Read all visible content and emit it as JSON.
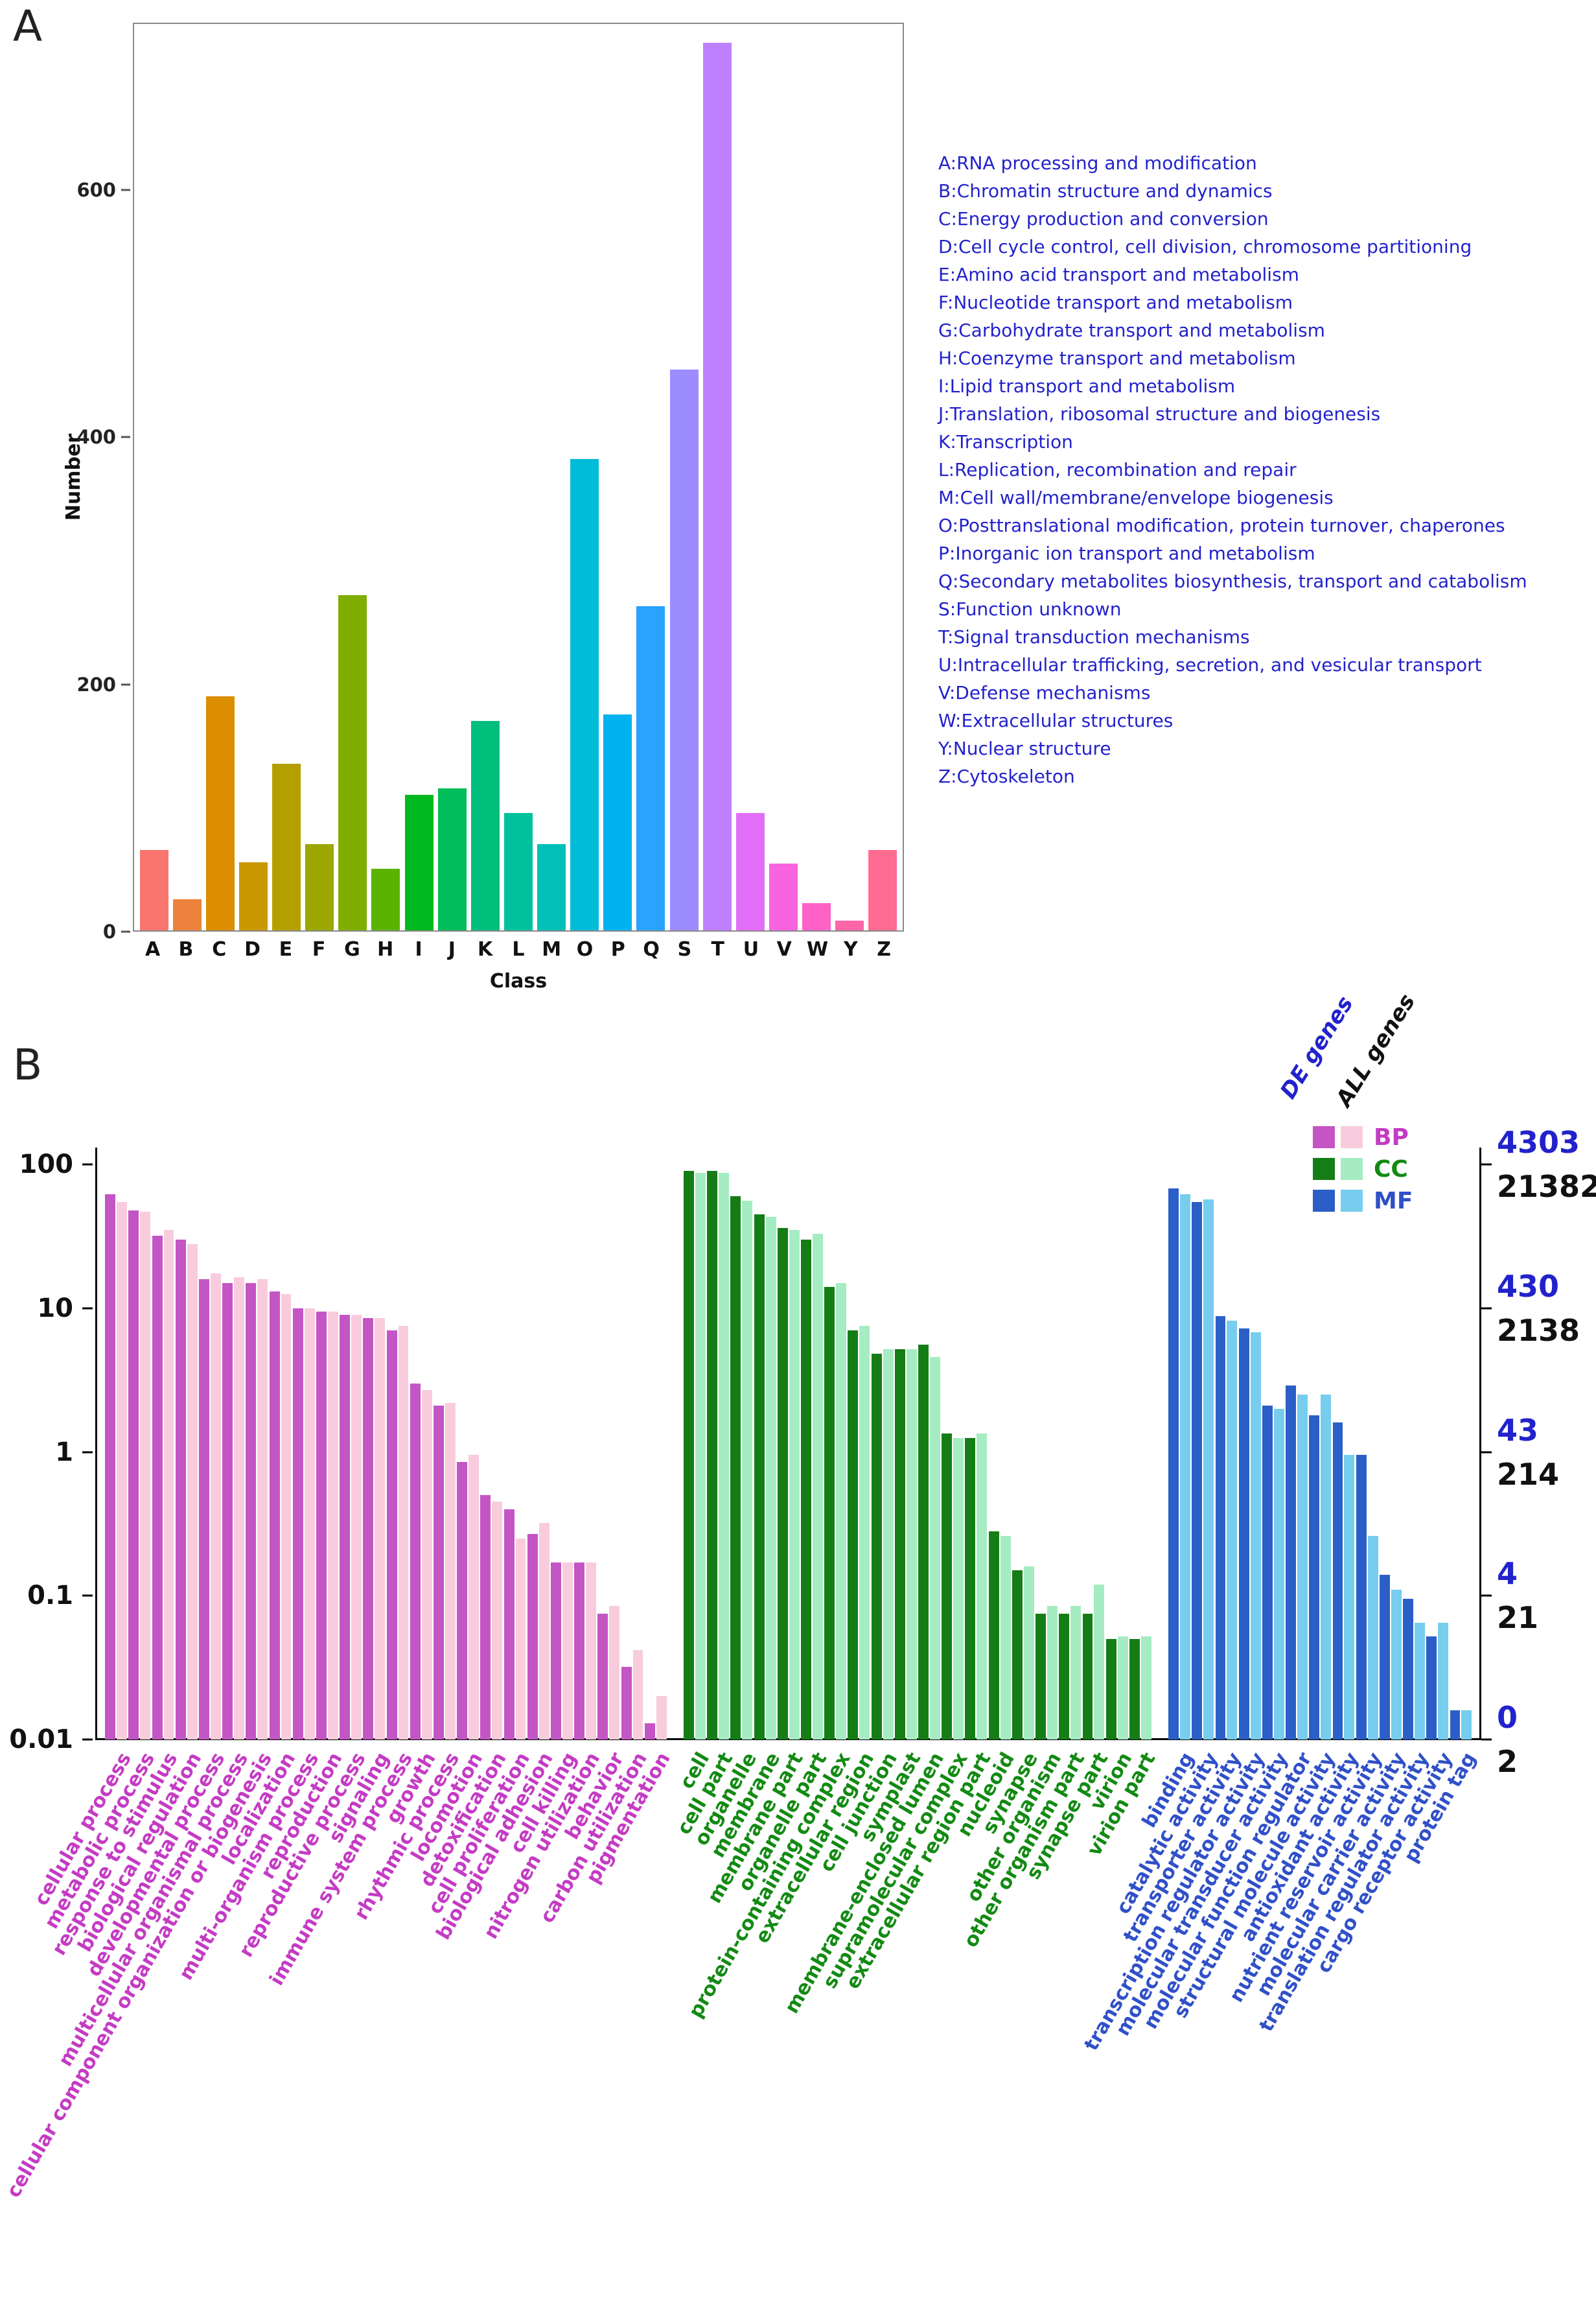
{
  "chart_data": [
    {
      "type": "bar",
      "panel": "A",
      "xlabel": "Class",
      "ylabel": "Number",
      "ylim": [
        0,
        735
      ],
      "yticks": [
        0,
        200,
        400,
        600
      ],
      "grid": false,
      "categories": [
        "A",
        "B",
        "C",
        "D",
        "E",
        "F",
        "G",
        "H",
        "I",
        "J",
        "K",
        "L",
        "M",
        "O",
        "P",
        "Q",
        "S",
        "T",
        "U",
        "V",
        "W",
        "Y",
        "Z"
      ],
      "values": [
        65,
        25,
        190,
        55,
        135,
        70,
        272,
        50,
        110,
        115,
        170,
        95,
        70,
        382,
        175,
        263,
        455,
        720,
        95,
        54,
        22,
        8,
        65
      ],
      "colors": [
        "#F8766D",
        "#EC823C",
        "#DB8E00",
        "#C99800",
        "#B3A000",
        "#9CA700",
        "#7FAD00",
        "#5BB300",
        "#00B81F",
        "#00BC59",
        "#00BF7D",
        "#00C19C",
        "#00C0B8",
        "#00BCD8",
        "#00B3F0",
        "#29A3FF",
        "#9C8CFF",
        "#BE80FF",
        "#E26EF7",
        "#F863DF",
        "#FF61C7",
        "#FF65A9",
        "#FF6C91"
      ],
      "legend_position": "right",
      "legend_color": "#2222CC",
      "legend": [
        "A:RNA processing and modification",
        "B:Chromatin structure and dynamics",
        "C:Energy production and conversion",
        "D:Cell cycle control, cell division, chromosome partitioning",
        "E:Amino acid transport and metabolism",
        "F:Nucleotide transport and metabolism",
        "G:Carbohydrate transport and metabolism",
        "H:Coenzyme transport and metabolism",
        "I:Lipid transport and metabolism",
        "J:Translation, ribosomal structure and biogenesis",
        "K:Transcription",
        "L:Replication, recombination and repair",
        "M:Cell wall/membrane/envelope biogenesis",
        "O:Posttranslational modification, protein turnover, chaperones",
        "P:Inorganic ion transport and metabolism",
        "Q:Secondary metabolites biosynthesis, transport and catabolism",
        "S:Function unknown",
        "T:Signal transduction mechanisms",
        "U:Intracellular trafficking, secretion, and vesicular transport",
        "V:Defense mechanisms",
        "W:Extracellular structures",
        "Y:Nuclear structure",
        "Z:Cytoskeleton"
      ]
    },
    {
      "type": "grouped-bar-log",
      "panel": "B",
      "yscale": "log",
      "ylim": [
        0.01,
        100
      ],
      "left_ticks": [
        "100",
        "10",
        "1",
        "0.1",
        "0.01"
      ],
      "series": [
        "DE genes",
        "ALL genes"
      ],
      "right_axis": {
        "de": [
          "4303",
          "430",
          "43",
          "4",
          "0"
        ],
        "all": [
          "21382",
          "2138",
          "214",
          "21",
          "2"
        ]
      },
      "groups": [
        {
          "name": "BP",
          "color_de": "#C455C5",
          "color_all": "#F8CCDC",
          "label_color": "#C43BC4",
          "categories": [
            "cellular process",
            "metabolic process",
            "response to stimulus",
            "biological regulation",
            "developmental process",
            "multicellular organismal process",
            "cellular component organization or biogenesis",
            "localization",
            "multi-organism process",
            "reproduction",
            "reproductive process",
            "signaling",
            "immune system process",
            "growth",
            "rhythmic process",
            "locomotion",
            "detoxification",
            "cell proliferation",
            "biological adhesion",
            "cell killing",
            "nitrogen utilization",
            "behavior",
            "carbon utilization",
            "pigmentation"
          ],
          "de_values": [
            62,
            48,
            32,
            30,
            16,
            15,
            15,
            13,
            10,
            9.5,
            9,
            8.5,
            7,
            3,
            2.1,
            0.85,
            0.5,
            0.4,
            0.27,
            0.17,
            0.17,
            0.075,
            0.032,
            0.013
          ],
          "all_values": [
            55,
            47,
            35,
            28,
            17.5,
            16.5,
            16,
            12.5,
            10,
            9.5,
            9,
            8.5,
            7.5,
            2.7,
            2.2,
            0.95,
            0.45,
            0.25,
            0.32,
            0.17,
            0.17,
            0.085,
            0.042,
            0.02
          ]
        },
        {
          "name": "CC",
          "color_de": "#157D15",
          "color_all": "#A6ECC2",
          "label_color": "#128A12",
          "categories": [
            "cell",
            "cell part",
            "organelle",
            "membrane",
            "membrane part",
            "organelle part",
            "protein-containing complex",
            "extracellular region",
            "cell junction",
            "symplast",
            "membrane-enclosed lumen",
            "supramolecular complex",
            "extracellular region part",
            "nucleoid",
            "synapse",
            "other organism",
            "other organism part",
            "synapse part",
            "virion",
            "virion part"
          ],
          "de_values": [
            90,
            90,
            60,
            45,
            36,
            30,
            14,
            7,
            4.8,
            5.2,
            5.6,
            1.35,
            1.25,
            0.28,
            0.15,
            0.075,
            0.075,
            0.075,
            0.05,
            0.05
          ],
          "all_values": [
            87,
            87,
            56,
            43,
            35,
            33,
            15,
            7.5,
            5.2,
            5.2,
            4.6,
            1.25,
            1.35,
            0.26,
            0.16,
            0.085,
            0.085,
            0.12,
            0.052,
            0.052
          ]
        },
        {
          "name": "MF",
          "color_de": "#2B5FC7",
          "color_all": "#77CDED",
          "label_color": "#3050C8",
          "categories": [
            "binding",
            "catalytic activity",
            "transporter activity",
            "transcription regulator activity",
            "molecular transducer activity",
            "molecular function regulator",
            "structural molecule activity",
            "antioxidant activity",
            "nutrient reservoir activity",
            "molecular carrier activity",
            "translation regulator activity",
            "cargo receptor activity",
            "protein tag"
          ],
          "de_values": [
            68,
            55,
            8.8,
            7.2,
            2.1,
            2.9,
            1.8,
            1.6,
            0.95,
            0.14,
            0.095,
            0.052,
            0.016
          ],
          "all_values": [
            62,
            57,
            8.2,
            6.8,
            2.0,
            2.5,
            2.5,
            0.95,
            0.26,
            0.11,
            0.065,
            0.065,
            0.016
          ]
        }
      ]
    }
  ]
}
